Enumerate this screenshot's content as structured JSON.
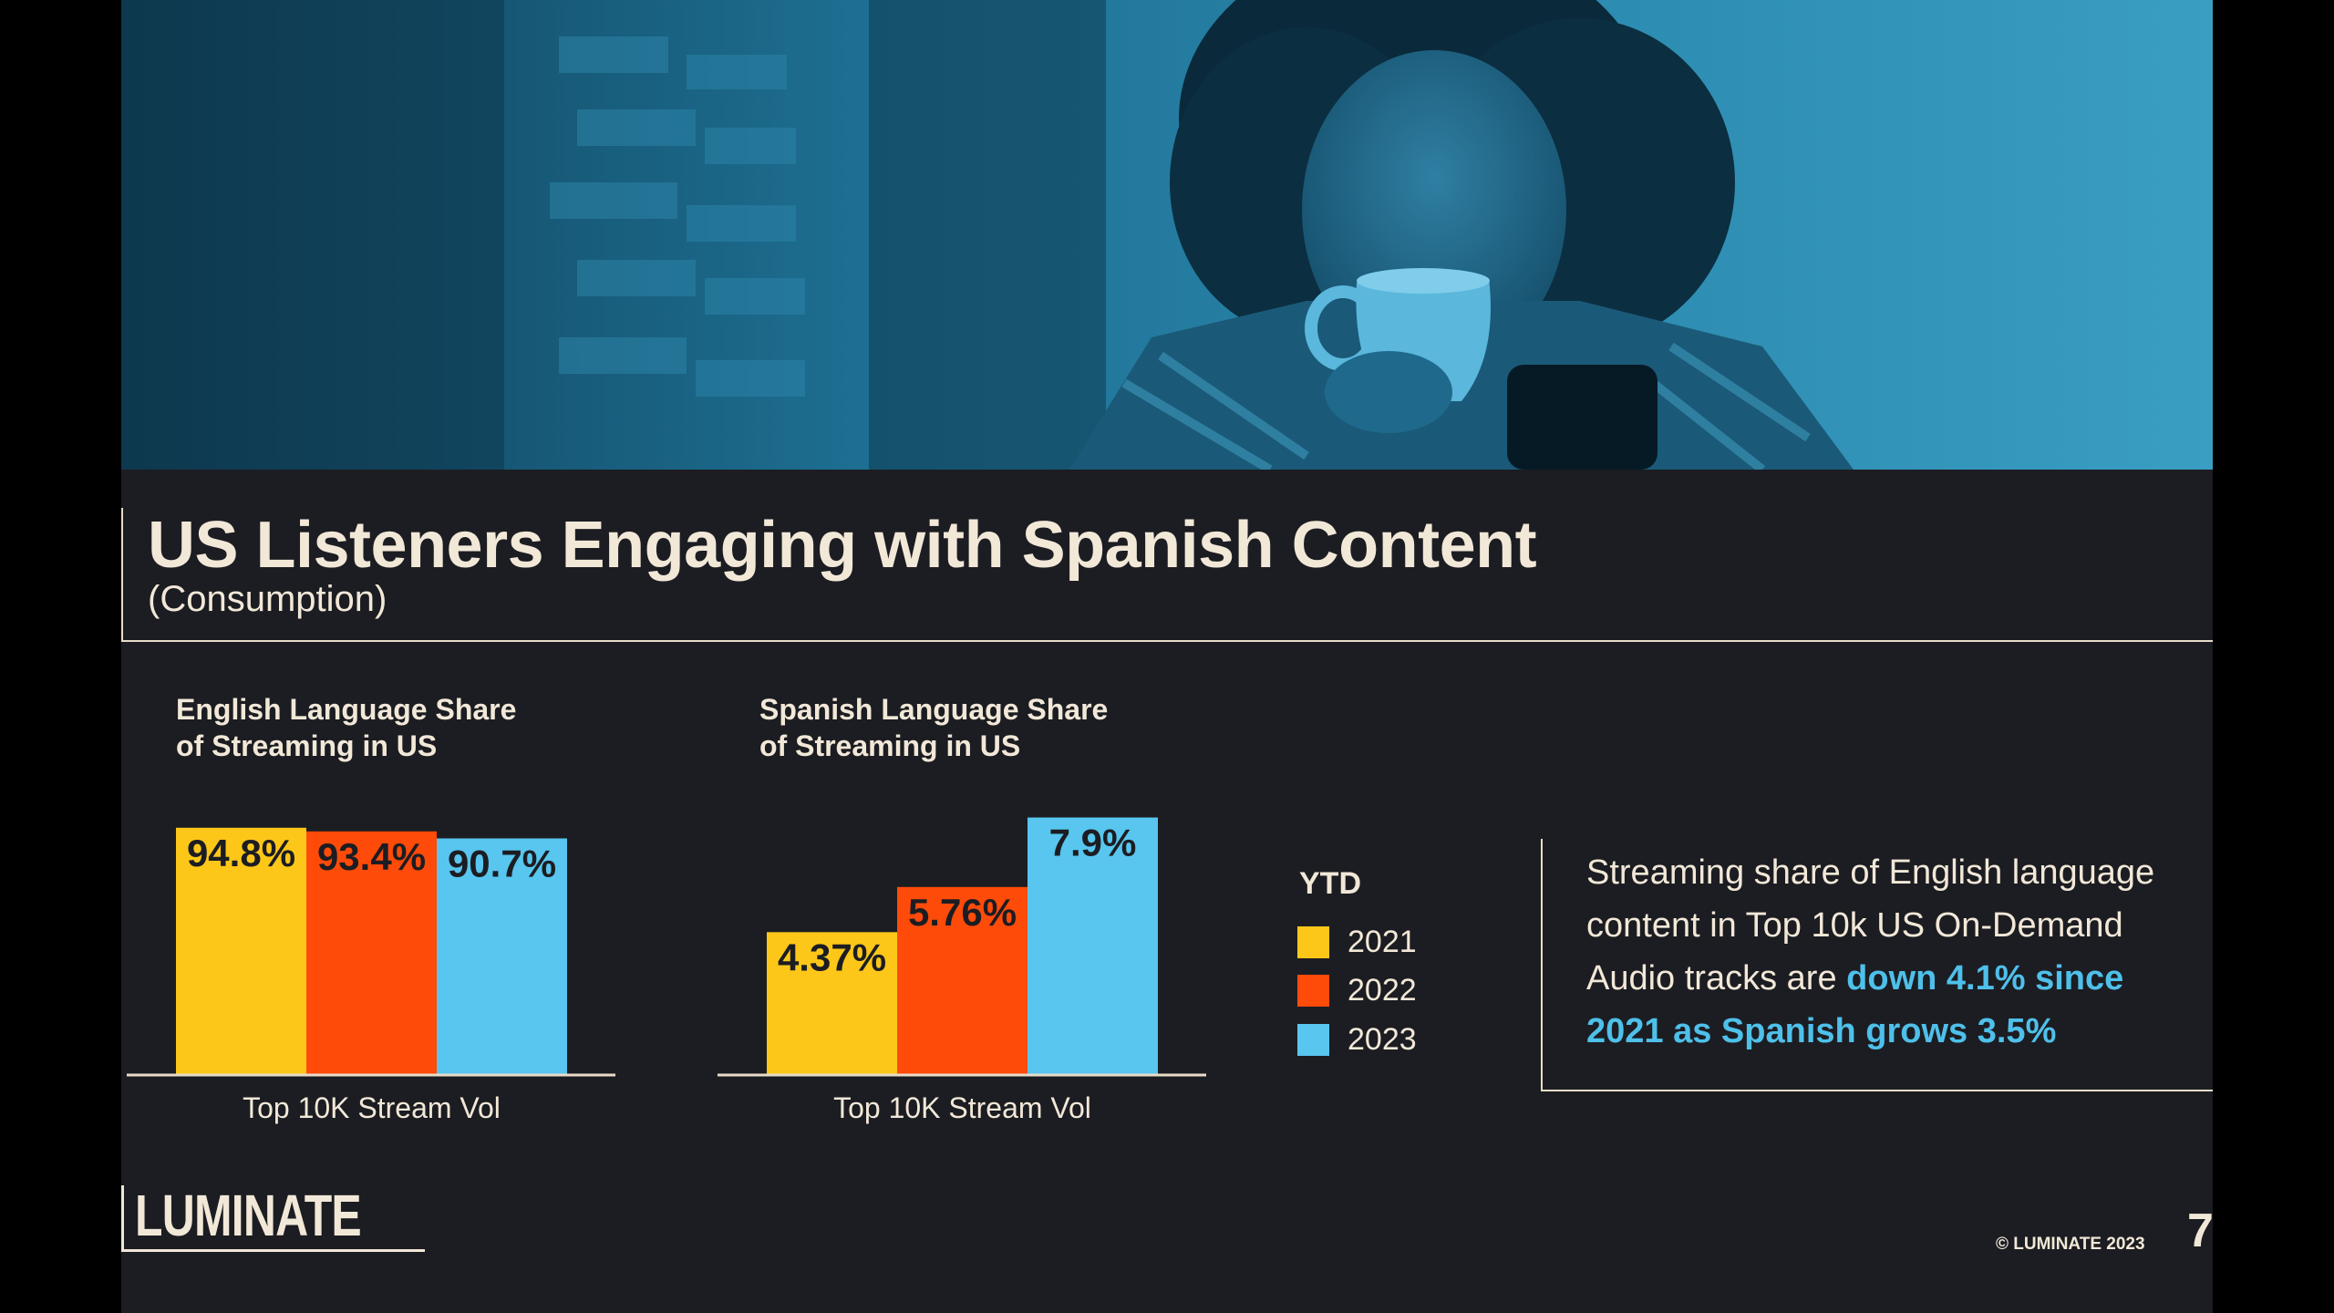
{
  "slide": {
    "title": "US Listeners Engaging with Spanish Content",
    "subtitle": "(Consumption)"
  },
  "colors": {
    "2021": "#fdc719",
    "2022": "#ff4b0a",
    "2023": "#58c6ef",
    "highlight": "#4ec0ea"
  },
  "chart_data": [
    {
      "type": "bar",
      "title": "English Language Share\nof Streaming in US",
      "categories": [
        "Top 10K Stream Vol"
      ],
      "series": [
        {
          "name": "2021",
          "values": [
            94.8
          ],
          "label": "94.8%"
        },
        {
          "name": "2022",
          "values": [
            93.4
          ],
          "label": "93.4%"
        },
        {
          "name": "2023",
          "values": [
            90.7
          ],
          "label": "90.7%"
        }
      ],
      "xlabel": "Top 10K Stream Vol",
      "ylim": [
        0,
        100
      ],
      "grid": false,
      "legend": "right"
    },
    {
      "type": "bar",
      "title": "Spanish Language Share\nof Streaming in US",
      "categories": [
        "Top 10K Stream Vol"
      ],
      "series": [
        {
          "name": "2021",
          "values": [
            4.37
          ],
          "label": "4.37%"
        },
        {
          "name": "2022",
          "values": [
            5.76
          ],
          "label": "5.76%"
        },
        {
          "name": "2023",
          "values": [
            7.9
          ],
          "label": "7.9%"
        }
      ],
      "xlabel": "Top 10K Stream Vol",
      "ylim": [
        0,
        8
      ],
      "grid": false,
      "legend": "right"
    }
  ],
  "legend": {
    "title": "YTD",
    "items": [
      "2021",
      "2022",
      "2023"
    ]
  },
  "callout": {
    "text_plain": "Streaming share of English language content in Top 10k US On-Demand Audio tracks are",
    "text_highlight": "down 4.1% since 2021 as Spanish grows 3.5%"
  },
  "footer": {
    "logo": "LUMINATE",
    "copyright": "© LUMINATE 2023",
    "page": "7"
  }
}
